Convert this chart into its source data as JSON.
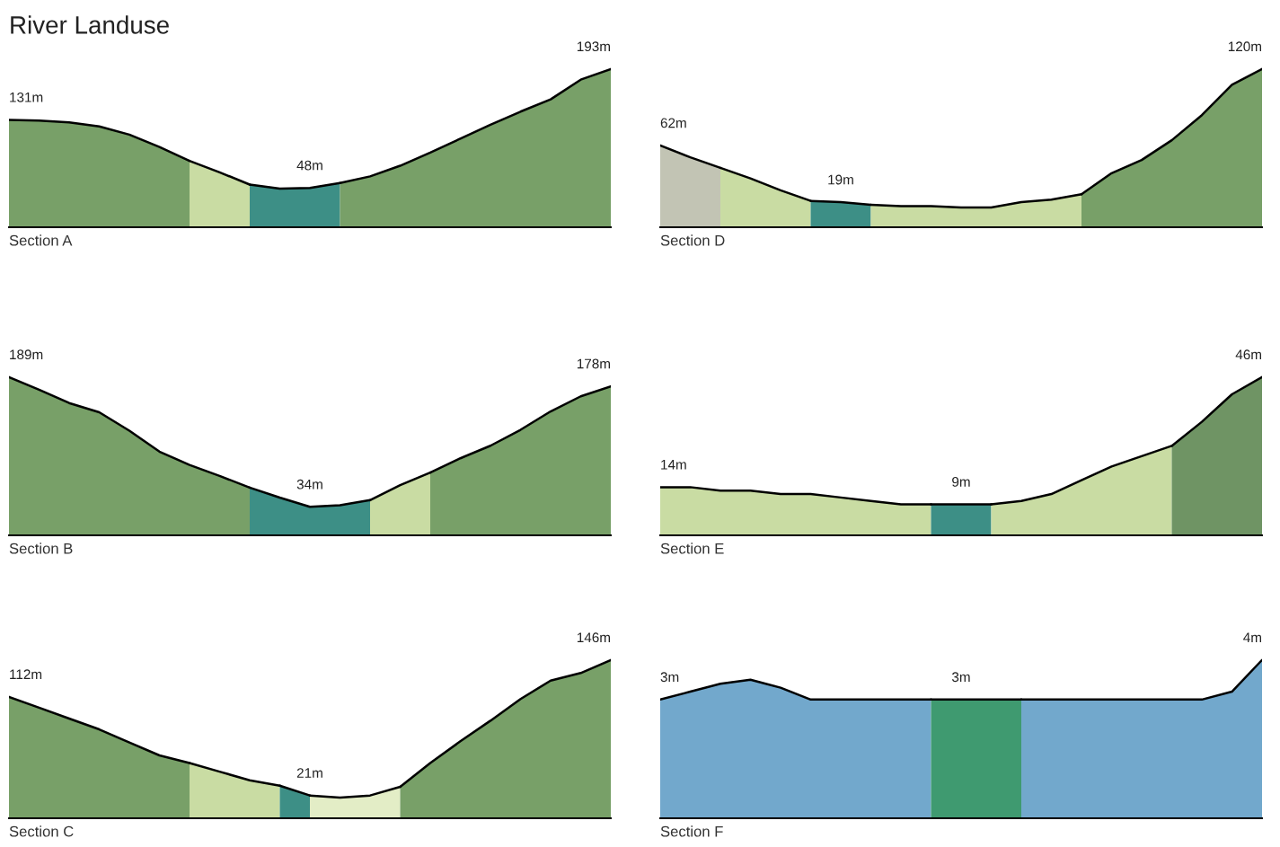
{
  "chart_data": [
    {
      "type": "area",
      "title": "River Landuse",
      "xlabel": "Section A",
      "tick_labels": false,
      "categories": [
        null,
        null,
        null,
        null,
        null,
        null,
        null,
        null,
        null,
        null,
        null,
        null,
        null,
        null,
        null,
        null,
        null,
        null,
        null,
        null,
        null
      ],
      "series": [
        {
          "color": "#78a068",
          "values": [
            131,
            130,
            128,
            123,
            113,
            98,
            81,
            null,
            null,
            null,
            null,
            null,
            null,
            null,
            null,
            null,
            null,
            null,
            null,
            null,
            null
          ],
          "value_labels": [
            "131m",
            null,
            null,
            null,
            null,
            null,
            null,
            null,
            null,
            null,
            null,
            null,
            null,
            null,
            null,
            null,
            null,
            null,
            null,
            null,
            null
          ]
        },
        {
          "color": "#c9dca3",
          "values": [
            null,
            null,
            null,
            null,
            null,
            null,
            81,
            67,
            52,
            null,
            null,
            null,
            null,
            null,
            null,
            null,
            null,
            null,
            null,
            null,
            null
          ]
        },
        {
          "color": "#3d8f86",
          "values": [
            null,
            null,
            null,
            null,
            null,
            null,
            null,
            null,
            52,
            47,
            48,
            54,
            null,
            null,
            null,
            null,
            null,
            null,
            null,
            null,
            null
          ],
          "value_labels": [
            null,
            null,
            null,
            null,
            null,
            null,
            null,
            null,
            null,
            null,
            "48m",
            null,
            null,
            null,
            null,
            null,
            null,
            null,
            null,
            null,
            null
          ]
        },
        {
          "color": "#78a068",
          "values": [
            null,
            null,
            null,
            null,
            null,
            null,
            null,
            null,
            null,
            null,
            null,
            54,
            62,
            75,
            91,
            108,
            125,
            141,
            156,
            180,
            193
          ],
          "value_labels": [
            null,
            null,
            null,
            null,
            null,
            null,
            null,
            null,
            null,
            null,
            null,
            null,
            null,
            null,
            null,
            null,
            null,
            null,
            null,
            null,
            "193m"
          ]
        }
      ]
    },
    {
      "type": "area",
      "xlabel": "Section D",
      "tick_labels": false,
      "categories": [
        null,
        null,
        null,
        null,
        null,
        null,
        null,
        null,
        null,
        null,
        null,
        null,
        null,
        null,
        null,
        null,
        null,
        null,
        null,
        null,
        null
      ],
      "series": [
        {
          "color": "#c2c4b4",
          "values": [
            62,
            53,
            45,
            null,
            null,
            null,
            null,
            null,
            null,
            null,
            null,
            null,
            null,
            null,
            null,
            null,
            null,
            null,
            null,
            null,
            null
          ],
          "value_labels": [
            "62m",
            null,
            null,
            null,
            null,
            null,
            null,
            null,
            null,
            null,
            null,
            null,
            null,
            null,
            null,
            null,
            null,
            null,
            null,
            null,
            null
          ]
        },
        {
          "color": "#c9dca3",
          "values": [
            null,
            null,
            45,
            37,
            28,
            20,
            null,
            null,
            null,
            null,
            null,
            null,
            null,
            null,
            null,
            null,
            null,
            null,
            null,
            null,
            null
          ]
        },
        {
          "color": "#3d8f86",
          "values": [
            null,
            null,
            null,
            null,
            null,
            20,
            19,
            17,
            null,
            null,
            null,
            null,
            null,
            null,
            null,
            null,
            null,
            null,
            null,
            null,
            null
          ],
          "value_labels": [
            null,
            null,
            null,
            null,
            null,
            null,
            "19m",
            null,
            null,
            null,
            null,
            null,
            null,
            null,
            null,
            null,
            null,
            null,
            null,
            null,
            null
          ]
        },
        {
          "color": "#c9dca3",
          "values": [
            null,
            null,
            null,
            null,
            null,
            null,
            null,
            17,
            16,
            16,
            15,
            15,
            19,
            21,
            25,
            null,
            null,
            null,
            null,
            null,
            null
          ]
        },
        {
          "color": "#78a068",
          "values": [
            null,
            null,
            null,
            null,
            null,
            null,
            null,
            null,
            null,
            null,
            null,
            null,
            null,
            null,
            25,
            41,
            51,
            66,
            85,
            108,
            120
          ],
          "value_labels": [
            null,
            null,
            null,
            null,
            null,
            null,
            null,
            null,
            null,
            null,
            null,
            null,
            null,
            null,
            null,
            null,
            null,
            null,
            null,
            null,
            "120m"
          ]
        }
      ]
    },
    {
      "type": "area",
      "xlabel": "Section B",
      "tick_labels": false,
      "categories": [
        null,
        null,
        null,
        null,
        null,
        null,
        null,
        null,
        null,
        null,
        null,
        null,
        null,
        null,
        null,
        null,
        null,
        null,
        null,
        null,
        null
      ],
      "series": [
        {
          "color": "#78a068",
          "values": [
            189,
            174,
            158,
            147,
            125,
            100,
            84,
            71,
            57,
            null,
            null,
            null,
            null,
            null,
            null,
            null,
            null,
            null,
            null,
            null,
            null
          ],
          "value_labels": [
            "189m",
            null,
            null,
            null,
            null,
            null,
            null,
            null,
            null,
            null,
            null,
            null,
            null,
            null,
            null,
            null,
            null,
            null,
            null,
            null,
            null
          ]
        },
        {
          "color": "#3d8f86",
          "values": [
            null,
            null,
            null,
            null,
            null,
            null,
            null,
            null,
            57,
            45,
            34,
            36,
            42,
            null,
            null,
            null,
            null,
            null,
            null,
            null,
            null
          ],
          "value_labels": [
            null,
            null,
            null,
            null,
            null,
            null,
            null,
            null,
            null,
            null,
            "34m",
            null,
            null,
            null,
            null,
            null,
            null,
            null,
            null,
            null,
            null
          ]
        },
        {
          "color": "#c9dca3",
          "values": [
            null,
            null,
            null,
            null,
            null,
            null,
            null,
            null,
            null,
            null,
            null,
            null,
            42,
            60,
            75,
            null,
            null,
            null,
            null,
            null,
            null
          ]
        },
        {
          "color": "#78a068",
          "values": [
            null,
            null,
            null,
            null,
            null,
            null,
            null,
            null,
            null,
            null,
            null,
            null,
            null,
            null,
            75,
            92,
            107,
            126,
            148,
            166,
            178
          ],
          "value_labels": [
            null,
            null,
            null,
            null,
            null,
            null,
            null,
            null,
            null,
            null,
            null,
            null,
            null,
            null,
            null,
            null,
            null,
            null,
            null,
            null,
            "178m"
          ]
        }
      ]
    },
    {
      "type": "area",
      "xlabel": "Section E",
      "tick_labels": false,
      "categories": [
        null,
        null,
        null,
        null,
        null,
        null,
        null,
        null,
        null,
        null,
        null,
        null,
        null,
        null,
        null,
        null,
        null,
        null,
        null,
        null,
        null
      ],
      "series": [
        {
          "color": "#c9dca3",
          "values": [
            14,
            14,
            13,
            13,
            12,
            12,
            11,
            10,
            9,
            9,
            null,
            null,
            null,
            null,
            null,
            null,
            null,
            null,
            null,
            null,
            null
          ],
          "value_labels": [
            "14m",
            null,
            null,
            null,
            null,
            null,
            null,
            null,
            null,
            null,
            null,
            null,
            null,
            null,
            null,
            null,
            null,
            null,
            null,
            null,
            null
          ]
        },
        {
          "color": "#3d8f86",
          "values": [
            null,
            null,
            null,
            null,
            null,
            null,
            null,
            null,
            null,
            9,
            9,
            9,
            null,
            null,
            null,
            null,
            null,
            null,
            null,
            null,
            null
          ],
          "value_labels": [
            null,
            null,
            null,
            null,
            null,
            null,
            null,
            null,
            null,
            null,
            "9m",
            null,
            null,
            null,
            null,
            null,
            null,
            null,
            null,
            null,
            null
          ]
        },
        {
          "color": "#c9dca3",
          "values": [
            null,
            null,
            null,
            null,
            null,
            null,
            null,
            null,
            null,
            null,
            null,
            9,
            10,
            12,
            16,
            20,
            23,
            26,
            null,
            null,
            null
          ]
        },
        {
          "color": "#6f9464",
          "values": [
            null,
            null,
            null,
            null,
            null,
            null,
            null,
            null,
            null,
            null,
            null,
            null,
            null,
            null,
            null,
            null,
            null,
            26,
            33,
            41,
            46
          ],
          "value_labels": [
            null,
            null,
            null,
            null,
            null,
            null,
            null,
            null,
            null,
            null,
            null,
            null,
            null,
            null,
            null,
            null,
            null,
            null,
            null,
            null,
            "46m"
          ]
        }
      ]
    },
    {
      "type": "area",
      "xlabel": "Section C",
      "tick_labels": false,
      "categories": [
        null,
        null,
        null,
        null,
        null,
        null,
        null,
        null,
        null,
        null,
        null,
        null,
        null,
        null,
        null,
        null,
        null,
        null,
        null,
        null,
        null
      ],
      "series": [
        {
          "color": "#78a068",
          "values": [
            112,
            102,
            92,
            82,
            70,
            58,
            51,
            null,
            null,
            null,
            null,
            null,
            null,
            null,
            null,
            null,
            null,
            null,
            null,
            null,
            null
          ],
          "value_labels": [
            "112m",
            null,
            null,
            null,
            null,
            null,
            null,
            null,
            null,
            null,
            null,
            null,
            null,
            null,
            null,
            null,
            null,
            null,
            null,
            null,
            null
          ]
        },
        {
          "color": "#c9dca3",
          "values": [
            null,
            null,
            null,
            null,
            null,
            null,
            51,
            43,
            35,
            30,
            null,
            null,
            null,
            null,
            null,
            null,
            null,
            null,
            null,
            null,
            null
          ]
        },
        {
          "color": "#3d8f86",
          "values": [
            null,
            null,
            null,
            null,
            null,
            null,
            null,
            null,
            null,
            30,
            21,
            null,
            null,
            null,
            null,
            null,
            null,
            null,
            null,
            null,
            null
          ],
          "value_labels": [
            null,
            null,
            null,
            null,
            null,
            null,
            null,
            null,
            null,
            null,
            "21m",
            null,
            null,
            null,
            null,
            null,
            null,
            null,
            null,
            null,
            null
          ]
        },
        {
          "color": "#e3edc6",
          "values": [
            null,
            null,
            null,
            null,
            null,
            null,
            null,
            null,
            null,
            null,
            21,
            19,
            21,
            29,
            null,
            null,
            null,
            null,
            null,
            null,
            null
          ]
        },
        {
          "color": "#78a068",
          "values": [
            null,
            null,
            null,
            null,
            null,
            null,
            null,
            null,
            null,
            null,
            null,
            null,
            null,
            29,
            51,
            71,
            90,
            110,
            127,
            134,
            146
          ],
          "value_labels": [
            null,
            null,
            null,
            null,
            null,
            null,
            null,
            null,
            null,
            null,
            null,
            null,
            null,
            null,
            null,
            null,
            null,
            null,
            null,
            null,
            "146m"
          ]
        }
      ]
    },
    {
      "type": "area",
      "xlabel": "Section F",
      "tick_labels": false,
      "categories": [
        null,
        null,
        null,
        null,
        null,
        null,
        null,
        null,
        null,
        null,
        null,
        null,
        null,
        null,
        null,
        null,
        null,
        null,
        null,
        null,
        null
      ],
      "series": [
        {
          "color": "#72a8cc",
          "values": [
            3,
            3.2,
            3.4,
            3.5,
            3.3,
            3,
            3,
            3,
            3,
            3,
            null,
            null,
            null,
            null,
            null,
            null,
            null,
            null,
            null,
            null,
            null
          ],
          "value_labels": [
            "3m",
            null,
            null,
            null,
            null,
            null,
            null,
            null,
            null,
            null,
            null,
            null,
            null,
            null,
            null,
            null,
            null,
            null,
            null,
            null,
            null
          ]
        },
        {
          "color": "#3f9a70",
          "values": [
            null,
            null,
            null,
            null,
            null,
            null,
            null,
            null,
            null,
            3,
            3,
            3,
            3,
            null,
            null,
            null,
            null,
            null,
            null,
            null,
            null
          ],
          "value_labels": [
            null,
            null,
            null,
            null,
            null,
            null,
            null,
            null,
            null,
            null,
            "3m",
            null,
            null,
            null,
            null,
            null,
            null,
            null,
            null,
            null,
            null
          ]
        },
        {
          "color": "#72a8cc",
          "values": [
            null,
            null,
            null,
            null,
            null,
            null,
            null,
            null,
            null,
            null,
            null,
            null,
            3,
            3,
            3,
            3,
            3,
            3,
            3,
            3.2,
            4
          ],
          "value_labels": [
            null,
            null,
            null,
            null,
            null,
            null,
            null,
            null,
            null,
            null,
            null,
            null,
            null,
            null,
            null,
            null,
            null,
            null,
            null,
            null,
            "4m"
          ]
        }
      ]
    }
  ]
}
